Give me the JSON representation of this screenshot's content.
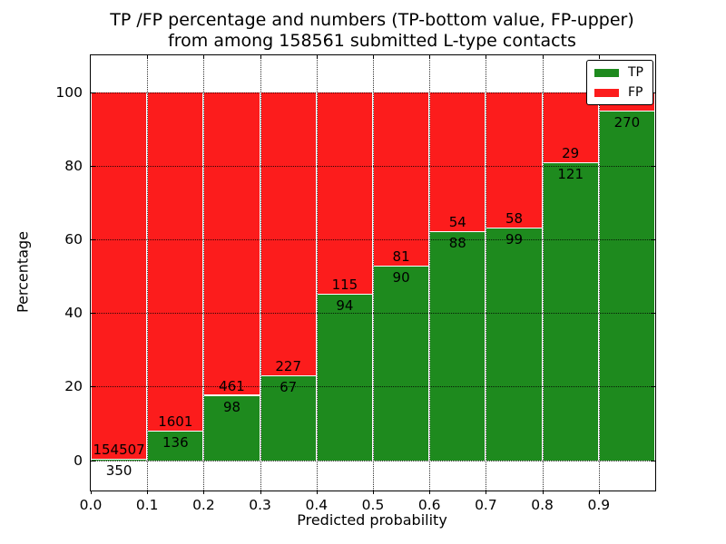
{
  "chart_data": {
    "type": "bar",
    "stacked": true,
    "title_line1": "TP /FP percentage and numbers (TP-bottom value, FP-upper)",
    "title_line2": "from among 158561 submitted L-type contacts",
    "xlabel": "Predicted probability",
    "ylabel": "Percentage",
    "xlim": [
      0.0,
      1.0
    ],
    "ylim": [
      -8.2,
      110
    ],
    "grid": "dotted",
    "x_tick_values": [
      0.0,
      0.1,
      0.2,
      0.3,
      0.4,
      0.5,
      0.6,
      0.7,
      0.8,
      0.9
    ],
    "x_tick_labels": [
      "0.0",
      "0.1",
      "0.2",
      "0.3",
      "0.4",
      "0.5",
      "0.6",
      "0.7",
      "0.8",
      "0.9"
    ],
    "y_tick_values": [
      0,
      20,
      40,
      60,
      80,
      100
    ],
    "y_tick_labels": [
      "0",
      "20",
      "40",
      "60",
      "80",
      "100"
    ],
    "colors": {
      "tp": "#1e8a1e",
      "fp": "#fc1c1c"
    },
    "legend": {
      "position": "upper right",
      "entries": [
        {
          "label": "TP",
          "color_key": "tp"
        },
        {
          "label": "FP",
          "color_key": "fp"
        }
      ]
    },
    "bins": [
      {
        "range": [
          0.0,
          0.1
        ],
        "tp": 350,
        "fp": 154507,
        "tp_pct": 0.23,
        "fp_pct": 99.77,
        "fp_label_visible": true
      },
      {
        "range": [
          0.1,
          0.2
        ],
        "tp": 136,
        "fp": 1601,
        "tp_pct": 7.83,
        "fp_pct": 92.17,
        "fp_label_visible": true
      },
      {
        "range": [
          0.2,
          0.3
        ],
        "tp": 98,
        "fp": 461,
        "tp_pct": 17.53,
        "fp_pct": 82.47,
        "fp_label_visible": true
      },
      {
        "range": [
          0.3,
          0.4
        ],
        "tp": 67,
        "fp": 227,
        "tp_pct": 22.79,
        "fp_pct": 77.21,
        "fp_label_visible": true
      },
      {
        "range": [
          0.4,
          0.5
        ],
        "tp": 94,
        "fp": 115,
        "tp_pct": 44.98,
        "fp_pct": 55.02,
        "fp_label_visible": true
      },
      {
        "range": [
          0.5,
          0.6
        ],
        "tp": 90,
        "fp": 81,
        "tp_pct": 52.63,
        "fp_pct": 47.37,
        "fp_label_visible": true
      },
      {
        "range": [
          0.6,
          0.7
        ],
        "tp": 88,
        "fp": 54,
        "tp_pct": 61.97,
        "fp_pct": 38.03,
        "fp_label_visible": true
      },
      {
        "range": [
          0.7,
          0.8
        ],
        "tp": 99,
        "fp": 58,
        "tp_pct": 63.06,
        "fp_pct": 36.94,
        "fp_label_visible": true
      },
      {
        "range": [
          0.8,
          0.9
        ],
        "tp": 121,
        "fp": 29,
        "tp_pct": 80.67,
        "fp_pct": 19.33,
        "fp_label_visible": true
      },
      {
        "range": [
          0.9,
          1.0
        ],
        "tp": 270,
        "fp": null,
        "tp_pct": 94.74,
        "fp_pct": 5.26,
        "fp_label_visible": false
      }
    ]
  }
}
